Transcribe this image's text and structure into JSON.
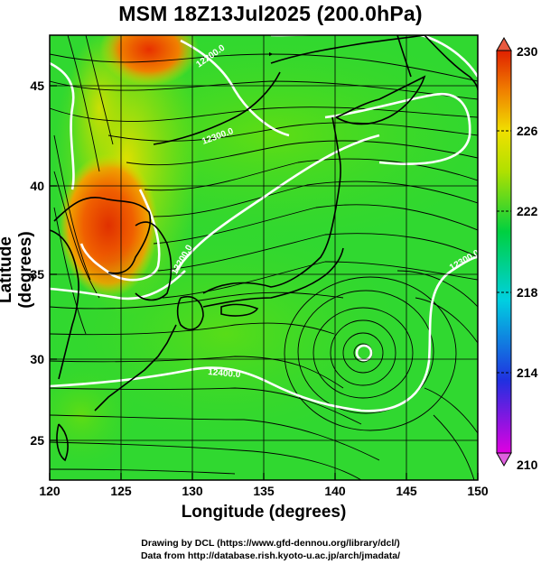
{
  "title": "MSM 18Z13Jul2025 (200.0hPa)",
  "xlabel": "Longitude (degrees)",
  "ylabel": "Latitude  (degrees)",
  "credit_line1": "Drawing by DCL (https://www.gfd-dennou.org/library/dcl/)",
  "credit_line2": "Data from http://database.rish.kyoto-u.ac.jp/arch/jmadata/",
  "chart_data": {
    "type": "map",
    "variable": "temperature / geopotential height with wind streamlines",
    "level_hPa": 200.0,
    "xlim": [
      120,
      150
    ],
    "ylim": [
      22.4,
      47.6
    ],
    "xticks": [
      120,
      125,
      130,
      135,
      140,
      145,
      150
    ],
    "yticks": [
      25,
      30,
      35,
      40,
      45
    ],
    "colorbar": {
      "min": 210,
      "max": 230,
      "ticks": [
        210,
        214,
        218,
        222,
        226,
        230
      ],
      "colors": [
        "#e000e0",
        "#2030e0",
        "#00e0e0",
        "#00d040",
        "#e0e000",
        "#f08000",
        "#e02000"
      ]
    },
    "contour_labels": [
      "12200.0",
      "12300.0",
      "12200.0",
      "12300.0",
      "12400.0"
    ],
    "warm_core_lon_lat": [
      124.5,
      37.5
    ],
    "anticyclone_center_lon_lat": [
      142.0,
      30.0
    ]
  }
}
